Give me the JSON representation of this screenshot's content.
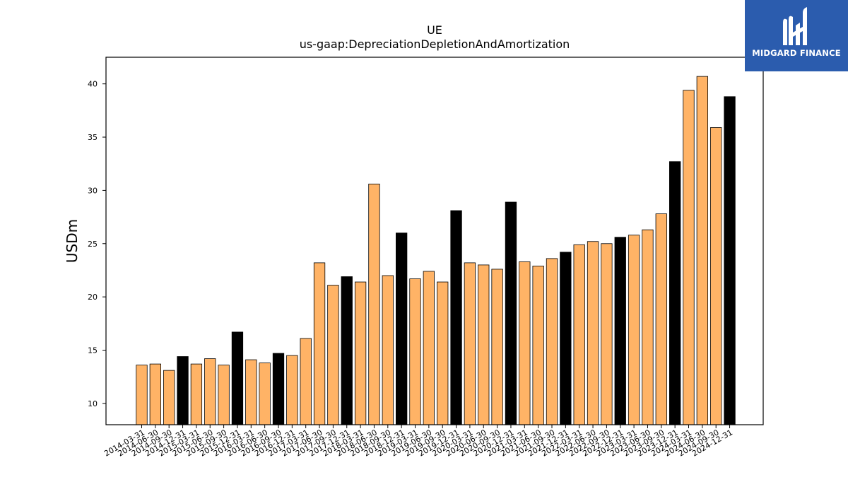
{
  "logo": {
    "text": "MIDGARD FINANCE",
    "background": "#2b5cae"
  },
  "chart_data": {
    "type": "bar",
    "title": "UE",
    "subtitle": "us-gaap:DepreciationDepletionAndAmortization",
    "xlabel": "",
    "ylabel": "USDm",
    "ylim": [
      8,
      42.5
    ],
    "yticks": [
      10,
      15,
      20,
      25,
      30,
      35,
      40
    ],
    "grid": false,
    "colors": {
      "quarter": "#ffb366",
      "annual": "#000000",
      "edge": "#000000"
    },
    "categories": [
      "2014-03-31",
      "2014-06-30",
      "2014-09-30",
      "2014-12-31",
      "2015-03-31",
      "2015-06-30",
      "2015-09-30",
      "2015-12-31",
      "2016-03-31",
      "2016-06-30",
      "2016-09-30",
      "2016-12-31",
      "2017-03-31",
      "2017-06-30",
      "2017-09-30",
      "2017-12-31",
      "2018-03-31",
      "2018-06-30",
      "2018-09-30",
      "2018-12-31",
      "2019-03-31",
      "2019-06-30",
      "2019-09-30",
      "2019-12-31",
      "2020-03-31",
      "2020-06-30",
      "2020-09-30",
      "2020-12-31",
      "2021-03-31",
      "2021-06-30",
      "2021-09-30",
      "2021-12-31",
      "2022-03-31",
      "2022-06-30",
      "2022-09-30",
      "2022-12-31",
      "2023-03-31",
      "2023-06-30",
      "2023-09-30",
      "2023-12-31",
      "2024-03-31",
      "2024-06-30",
      "2024-09-30",
      "2024-12-31"
    ],
    "values": [
      13.6,
      13.7,
      13.1,
      14.4,
      13.7,
      14.2,
      13.6,
      16.7,
      14.1,
      13.8,
      14.7,
      14.5,
      16.1,
      23.2,
      21.1,
      21.9,
      21.4,
      30.6,
      22.0,
      26.0,
      21.7,
      22.4,
      21.4,
      28.1,
      23.2,
      23.0,
      22.6,
      28.9,
      23.3,
      22.9,
      23.6,
      24.2,
      24.9,
      25.2,
      25.0,
      25.6,
      25.8,
      26.3,
      27.8,
      32.7,
      39.4,
      40.7,
      35.9,
      38.8
    ],
    "annual": [
      false,
      false,
      false,
      true,
      false,
      false,
      false,
      true,
      false,
      false,
      true,
      false,
      false,
      false,
      false,
      true,
      false,
      false,
      false,
      true,
      false,
      false,
      false,
      true,
      false,
      false,
      false,
      true,
      false,
      false,
      false,
      true,
      false,
      false,
      false,
      true,
      false,
      false,
      false,
      true,
      false,
      false,
      false,
      true
    ]
  }
}
